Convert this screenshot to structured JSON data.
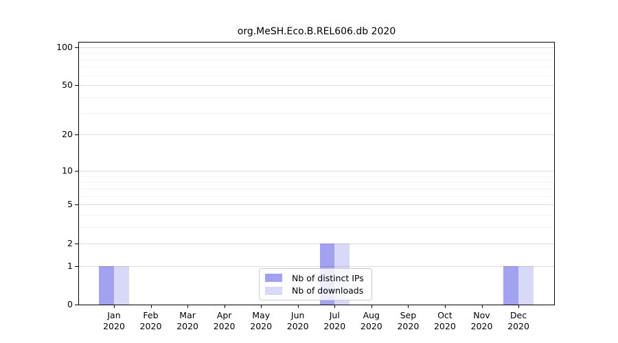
{
  "chart_data": {
    "type": "bar",
    "title": "org.MeSH.Eco.B.REL606.db 2020",
    "categories": [
      "Jan",
      "Feb",
      "Mar",
      "Apr",
      "May",
      "Jun",
      "Jul",
      "Aug",
      "Sep",
      "Oct",
      "Nov",
      "Dec"
    ],
    "year_label": "2020",
    "series": [
      {
        "name": "Nb of distinct IPs",
        "color": "#a2a2f0",
        "values": [
          1,
          0,
          0,
          0,
          0,
          0,
          2,
          0,
          0,
          0,
          0,
          1
        ]
      },
      {
        "name": "Nb of downloads",
        "color": "#d8d8f8",
        "values": [
          1,
          0,
          0,
          0,
          0,
          0,
          2,
          0,
          0,
          0,
          0,
          1
        ]
      }
    ],
    "y_scale": "log1p",
    "ylim": [
      0,
      110
    ],
    "y_major_ticks": [
      0,
      1,
      2,
      5,
      10,
      20,
      50,
      100
    ],
    "y_minor_ticks": [
      3,
      4,
      6,
      7,
      8,
      9,
      30,
      40,
      60,
      70,
      80,
      90
    ],
    "grid": {
      "major_color": "rgba(0,0,0,0.13)",
      "minor_color": "rgba(0,0,0,0.05)"
    },
    "legend_position": "lower center",
    "xlabel": "",
    "ylabel": ""
  }
}
